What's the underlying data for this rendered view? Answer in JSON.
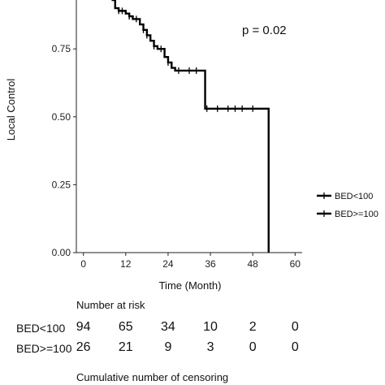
{
  "chart_data": {
    "type": "line",
    "title": "",
    "xlabel": "Time (Month)",
    "ylabel": "Local Control",
    "xlim": [
      -2,
      62
    ],
    "ylim": [
      0,
      0.93
    ],
    "xticks": [
      0,
      12,
      24,
      36,
      48,
      60
    ],
    "yticks": [
      0.0,
      0.25,
      0.5,
      0.75
    ],
    "ytick_labels": [
      "0.00",
      "0.25",
      "0.50",
      "0.75"
    ],
    "annotation": "p = 0.02",
    "legend_position": "right",
    "series": [
      {
        "name": "BED<100",
        "color": "#000000",
        "steps": [
          [
            8,
            0.93
          ],
          [
            9,
            0.9
          ],
          [
            10,
            0.89
          ],
          [
            12,
            0.88
          ],
          [
            13,
            0.87
          ],
          [
            14,
            0.86
          ],
          [
            16,
            0.84
          ],
          [
            17,
            0.82
          ],
          [
            18,
            0.8
          ],
          [
            19,
            0.78
          ],
          [
            20,
            0.76
          ],
          [
            21,
            0.75
          ],
          [
            23,
            0.72
          ],
          [
            24,
            0.7
          ],
          [
            25,
            0.68
          ],
          [
            26,
            0.67
          ],
          [
            34,
            0.67
          ],
          [
            34.5,
            0.53
          ],
          [
            52,
            0.53
          ],
          [
            52.5,
            0.0
          ]
        ],
        "censors": [
          10,
          11,
          13,
          15,
          17,
          18,
          20,
          22,
          24,
          27,
          30,
          32,
          35,
          38,
          41,
          43,
          45,
          48
        ]
      },
      {
        "name": "BED>=100",
        "color": "#000000",
        "steps": [],
        "censors": []
      }
    ]
  },
  "risk_table": {
    "title": "Number at risk",
    "times": [
      0,
      12,
      24,
      36,
      48,
      60
    ],
    "rows": [
      {
        "label": "BED<100",
        "values": [
          "94",
          "65",
          "34",
          "10",
          "2",
          "0"
        ]
      },
      {
        "label": "BED>=100",
        "values": [
          "26",
          "21",
          "9",
          "3",
          "0",
          "0"
        ]
      }
    ]
  },
  "censoring_title": "Cumulative number of censoring"
}
